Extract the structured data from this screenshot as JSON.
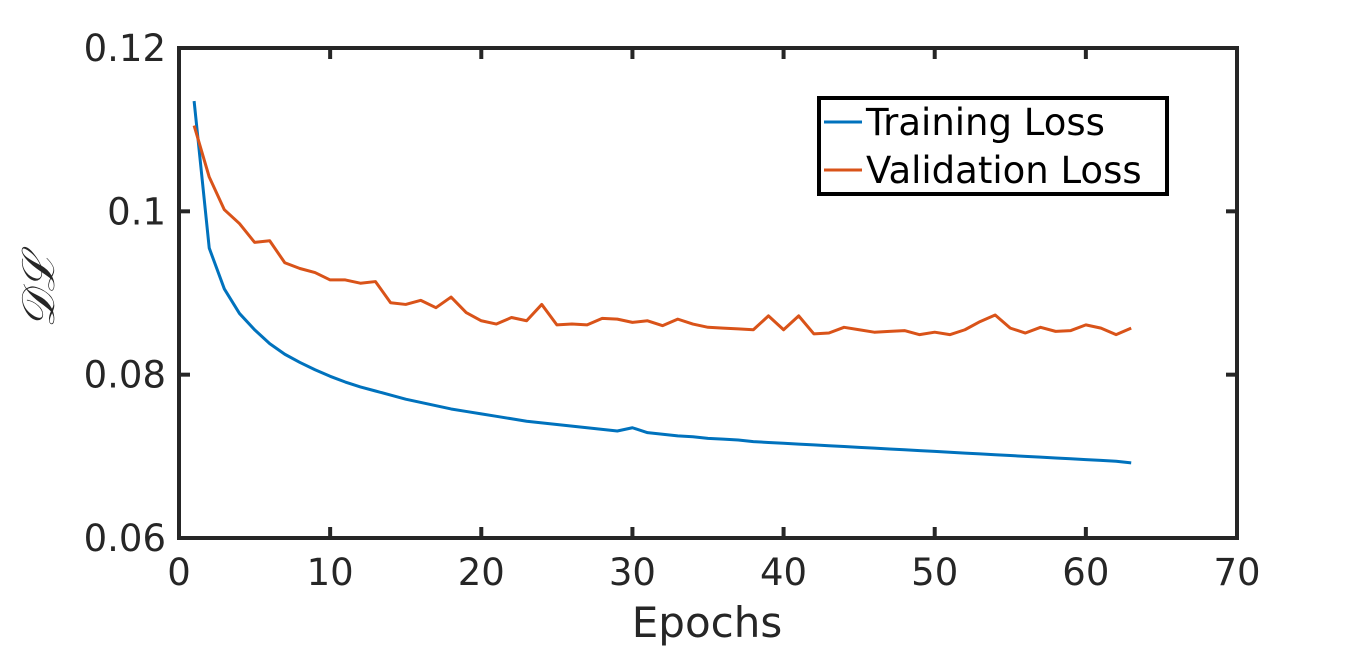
{
  "chart_data": {
    "type": "line",
    "title": "",
    "xlabel": "Epochs",
    "ylabel": "𝒟ℒ",
    "xlim": [
      0,
      70
    ],
    "ylim": [
      0.06,
      0.12
    ],
    "xticks": [
      0,
      10,
      20,
      30,
      40,
      50,
      60,
      70
    ],
    "xtick_labels": [
      "0",
      "10",
      "20",
      "30",
      "40",
      "50",
      "60",
      "70"
    ],
    "yticks": [
      0.06,
      0.08,
      0.1,
      0.12
    ],
    "ytick_labels": [
      "0.06",
      "0.08",
      "0.1",
      "0.12"
    ],
    "grid": false,
    "legend_position": "top-right",
    "x": [
      1,
      2,
      3,
      4,
      5,
      6,
      7,
      8,
      9,
      10,
      11,
      12,
      13,
      14,
      15,
      16,
      17,
      18,
      19,
      20,
      21,
      22,
      23,
      24,
      25,
      26,
      27,
      28,
      29,
      30,
      31,
      32,
      33,
      34,
      35,
      36,
      37,
      38,
      39,
      40,
      41,
      42,
      43,
      44,
      45,
      46,
      47,
      48,
      49,
      50,
      51,
      52,
      53,
      54,
      55,
      56,
      57,
      58,
      59,
      60,
      61,
      62,
      63
    ],
    "series": [
      {
        "name": "Training Loss",
        "color": "#0072bd",
        "values": [
          0.1135,
          0.0955,
          0.0905,
          0.0875,
          0.0855,
          0.0838,
          0.0825,
          0.0815,
          0.0806,
          0.0798,
          0.0791,
          0.0785,
          0.078,
          0.0775,
          0.077,
          0.0766,
          0.0762,
          0.0758,
          0.0755,
          0.0752,
          0.0749,
          0.0746,
          0.0743,
          0.0741,
          0.0739,
          0.0737,
          0.0735,
          0.0733,
          0.0731,
          0.0735,
          0.0729,
          0.0727,
          0.0725,
          0.0724,
          0.0722,
          0.0721,
          0.072,
          0.0718,
          0.0717,
          0.0716,
          0.0715,
          0.0714,
          0.0713,
          0.0712,
          0.0711,
          0.071,
          0.0709,
          0.0708,
          0.0707,
          0.0706,
          0.0705,
          0.0704,
          0.0703,
          0.0702,
          0.0701,
          0.07,
          0.0699,
          0.0698,
          0.0697,
          0.0696,
          0.0695,
          0.0694,
          0.0692
        ]
      },
      {
        "name": "Validation Loss",
        "color": "#d95319",
        "values": [
          0.1105,
          0.1042,
          0.1002,
          0.0985,
          0.0962,
          0.0964,
          0.0937,
          0.093,
          0.0925,
          0.0916,
          0.0916,
          0.0912,
          0.0914,
          0.0888,
          0.0886,
          0.0891,
          0.0882,
          0.0895,
          0.0876,
          0.0866,
          0.0862,
          0.087,
          0.0866,
          0.0886,
          0.0861,
          0.0862,
          0.0861,
          0.0869,
          0.0868,
          0.0864,
          0.0866,
          0.086,
          0.0868,
          0.0862,
          0.0858,
          0.0857,
          0.0856,
          0.0855,
          0.0872,
          0.0855,
          0.0872,
          0.085,
          0.0851,
          0.0858,
          0.0855,
          0.0852,
          0.0853,
          0.0854,
          0.0849,
          0.0852,
          0.0849,
          0.0855,
          0.0865,
          0.0873,
          0.0857,
          0.0851,
          0.0858,
          0.0853,
          0.0854,
          0.0861,
          0.0857,
          0.0849,
          0.0857
        ]
      }
    ]
  }
}
